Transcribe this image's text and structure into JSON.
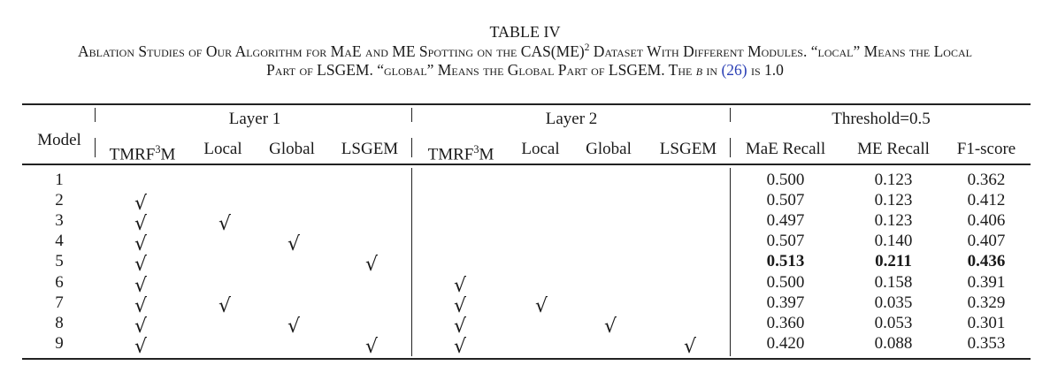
{
  "caption": {
    "label": "TABLE IV",
    "line1_a": "Ablation Studies of Our Algorithm for MaE and ME Spotting on the CAS(ME)",
    "line1_sup": "2",
    "line1_b": " Dataset With Different Modules. “local” Means the Local",
    "line2_a": "Part of LSGEM. “global” Means the Global Part of LSGEM. The ",
    "line2_beta": "β",
    "line2_b": " in ",
    "line2_ref": "(26)",
    "line2_c": " is 1.0"
  },
  "table": {
    "model_header": "Model",
    "group_headers": [
      "Layer 1",
      "Layer 2",
      "Threshold=0.5"
    ],
    "sub_headers": [
      {
        "base": "TMRF",
        "sup": "3",
        "tail": "M"
      },
      {
        "base": "Local"
      },
      {
        "base": "Global"
      },
      {
        "base": "LSGEM"
      },
      {
        "base": "TMRF",
        "sup": "3",
        "tail": "M"
      },
      {
        "base": "Local"
      },
      {
        "base": "Global"
      },
      {
        "base": "LSGEM"
      },
      {
        "base": "MaE Recall"
      },
      {
        "base": "ME Recall"
      },
      {
        "base": "F1-score"
      }
    ],
    "check_symbol": "√",
    "rows": [
      {
        "model": "1",
        "checks": [
          0,
          0,
          0,
          0,
          0,
          0,
          0,
          0
        ],
        "mae": "0.500",
        "me": "0.123",
        "f1": "0.362",
        "bold": false
      },
      {
        "model": "2",
        "checks": [
          1,
          0,
          0,
          0,
          0,
          0,
          0,
          0
        ],
        "mae": "0.507",
        "me": "0.123",
        "f1": "0.412",
        "bold": false
      },
      {
        "model": "3",
        "checks": [
          1,
          1,
          0,
          0,
          0,
          0,
          0,
          0
        ],
        "mae": "0.497",
        "me": "0.123",
        "f1": "0.406",
        "bold": false
      },
      {
        "model": "4",
        "checks": [
          1,
          0,
          1,
          0,
          0,
          0,
          0,
          0
        ],
        "mae": "0.507",
        "me": "0.140",
        "f1": "0.407",
        "bold": false
      },
      {
        "model": "5",
        "checks": [
          1,
          0,
          0,
          1,
          0,
          0,
          0,
          0
        ],
        "mae": "0.513",
        "me": "0.211",
        "f1": "0.436",
        "bold": true
      },
      {
        "model": "6",
        "checks": [
          1,
          0,
          0,
          0,
          1,
          0,
          0,
          0
        ],
        "mae": "0.500",
        "me": "0.158",
        "f1": "0.391",
        "bold": false
      },
      {
        "model": "7",
        "checks": [
          1,
          1,
          0,
          0,
          1,
          1,
          0,
          0
        ],
        "mae": "0.397",
        "me": "0.035",
        "f1": "0.329",
        "bold": false
      },
      {
        "model": "8",
        "checks": [
          1,
          0,
          1,
          0,
          1,
          0,
          1,
          0
        ],
        "mae": "0.360",
        "me": "0.053",
        "f1": "0.301",
        "bold": false
      },
      {
        "model": "9",
        "checks": [
          1,
          0,
          0,
          1,
          1,
          0,
          0,
          1
        ],
        "mae": "0.420",
        "me": "0.088",
        "f1": "0.353",
        "bold": false
      }
    ]
  }
}
